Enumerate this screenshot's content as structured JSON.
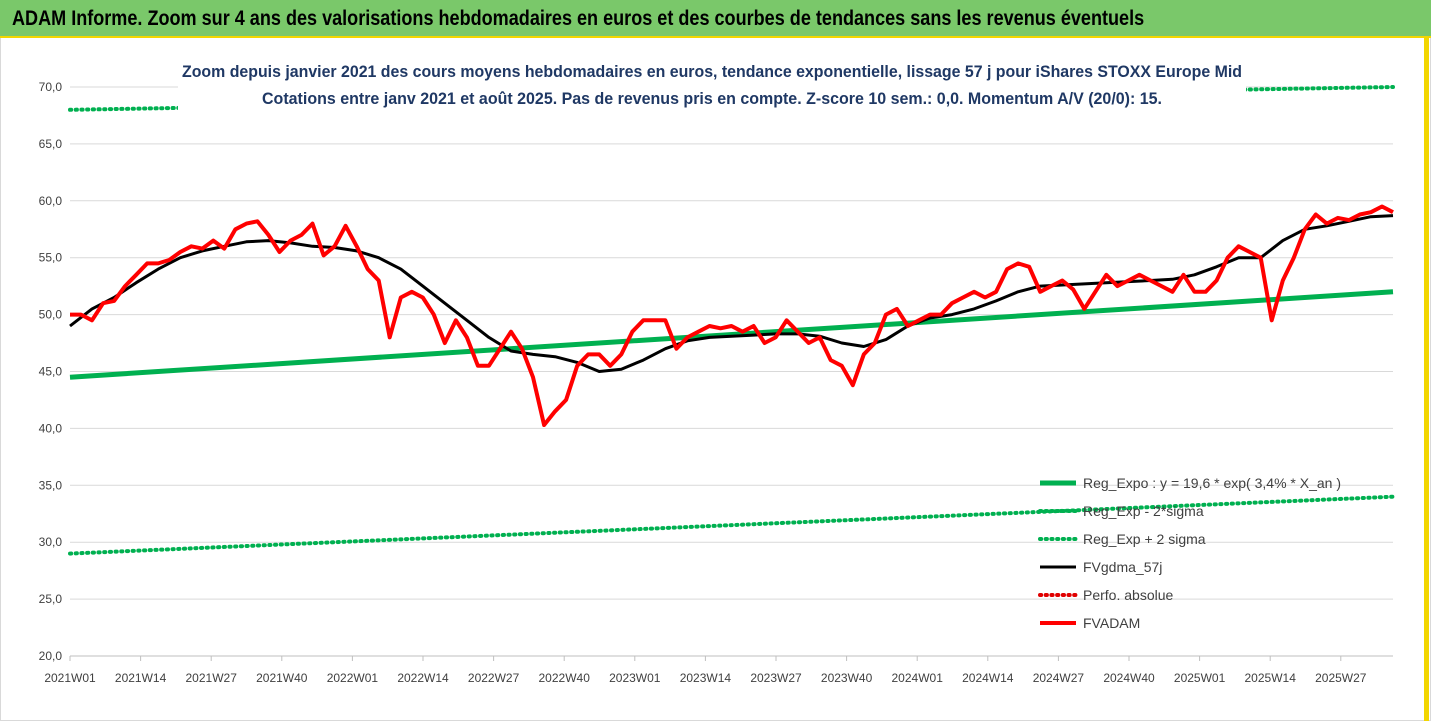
{
  "banner": {
    "title": "ADAM Informe. Zoom sur 4 ans des valorisations hebdomadaires en euros et des courbes de tendances sans les revenus éventuels"
  },
  "chart_data": {
    "type": "line",
    "title_line1": "Zoom depuis janvier 2021 des cours moyens hebdomadaires en euros, tendance exponentielle, lissage 57 j pour iShares STOXX Europe Mid",
    "title_line2": "Cotations entre janv 2021 et août 2025. Pas de revenus pris en compte. Z-score 10 sem.: 0,0. Momentum A/V (20/0): 15.",
    "ylim": [
      20,
      70
    ],
    "y_ticks": [
      "20,0",
      "25,0",
      "30,0",
      "35,0",
      "40,0",
      "45,0",
      "50,0",
      "55,0",
      "60,0",
      "65,0",
      "70,0"
    ],
    "x_ticks": [
      "2021W01",
      "2021W14",
      "2021W27",
      "2021W40",
      "2022W01",
      "2022W14",
      "2022W27",
      "2022W40",
      "2023W01",
      "2023W14",
      "2023W27",
      "2023W40",
      "2024W01",
      "2024W14",
      "2024W27",
      "2024W40",
      "2025W01",
      "2025W14",
      "2025W27"
    ],
    "x_range_weeks": [
      0,
      240
    ],
    "legend_position": "bottom-right",
    "series": [
      {
        "name": "Reg_Expo : y = 19,6 * exp( 3,4% *  X_an )",
        "color": "#00b050",
        "style": "solid",
        "x": [
          0,
          240
        ],
        "values": [
          44.5,
          52.0
        ]
      },
      {
        "name": "Reg_Exp - 2*sigma",
        "color": "#00b050",
        "style": "dotted",
        "x": [
          0,
          240
        ],
        "values": [
          29.0,
          34.0
        ]
      },
      {
        "name": "Reg_Exp + 2 sigma",
        "color": "#00b050",
        "style": "dotted",
        "x": [
          0,
          240
        ],
        "values": [
          68.0,
          70.0
        ]
      },
      {
        "name": "FVgdma_57j",
        "color": "#000000",
        "style": "solid",
        "x": [
          0,
          4,
          8,
          12,
          16,
          20,
          24,
          28,
          32,
          36,
          40,
          44,
          48,
          52,
          56,
          60,
          64,
          68,
          72,
          76,
          80,
          84,
          88,
          92,
          96,
          100,
          104,
          108,
          112,
          116,
          120,
          124,
          128,
          132,
          136,
          140,
          144,
          148,
          152,
          156,
          160,
          164,
          168,
          172,
          176,
          180,
          184,
          188,
          192,
          196,
          200,
          204,
          208,
          212,
          216,
          220,
          224,
          228,
          232,
          236,
          240
        ],
        "values": [
          49.0,
          50.5,
          51.5,
          52.8,
          54.0,
          55.0,
          55.6,
          56.0,
          56.4,
          56.5,
          56.3,
          56.0,
          55.9,
          55.6,
          55.0,
          54.0,
          52.5,
          51.0,
          49.5,
          48.0,
          46.8,
          46.5,
          46.3,
          45.8,
          45.0,
          45.2,
          46.0,
          47.0,
          47.7,
          48.0,
          48.1,
          48.2,
          48.3,
          48.3,
          48.1,
          47.5,
          47.2,
          47.8,
          49.0,
          49.7,
          50.0,
          50.5,
          51.2,
          52.0,
          52.5,
          52.6,
          52.7,
          52.8,
          52.9,
          53.0,
          53.1,
          53.5,
          54.2,
          55.0,
          55.0,
          56.5,
          57.5,
          57.8,
          58.2,
          58.6,
          58.7
        ]
      },
      {
        "name": "Perfo. absolue",
        "color": "#e00000",
        "style": "dotted",
        "x": [],
        "values": []
      },
      {
        "name": "FVADAM",
        "color": "#ff0000",
        "style": "solid",
        "x": [
          0,
          2,
          4,
          6,
          8,
          10,
          12,
          14,
          16,
          18,
          20,
          22,
          24,
          26,
          28,
          30,
          32,
          34,
          36,
          38,
          40,
          42,
          44,
          46,
          48,
          50,
          52,
          54,
          56,
          58,
          60,
          62,
          64,
          66,
          68,
          70,
          72,
          74,
          76,
          78,
          80,
          82,
          84,
          86,
          88,
          90,
          92,
          94,
          96,
          98,
          100,
          102,
          104,
          106,
          108,
          110,
          112,
          114,
          116,
          118,
          120,
          122,
          124,
          126,
          128,
          130,
          132,
          134,
          136,
          138,
          140,
          142,
          144,
          146,
          148,
          150,
          152,
          154,
          156,
          158,
          160,
          162,
          164,
          166,
          168,
          170,
          172,
          174,
          176,
          178,
          180,
          182,
          184,
          186,
          188,
          190,
          192,
          194,
          196,
          198,
          200,
          202,
          204,
          206,
          208,
          210,
          212,
          214,
          216,
          218,
          220,
          222,
          224,
          226,
          228,
          230,
          232,
          234,
          236,
          238,
          240
        ],
        "values": [
          50.0,
          50.0,
          49.5,
          51.0,
          51.2,
          52.5,
          53.5,
          54.5,
          54.5,
          54.8,
          55.5,
          56.0,
          55.8,
          56.5,
          55.8,
          57.5,
          58.0,
          58.2,
          57.0,
          55.5,
          56.5,
          57.0,
          58.0,
          55.2,
          56.0,
          57.8,
          56.0,
          54.0,
          53.0,
          48.0,
          51.5,
          52.0,
          51.5,
          50.0,
          47.5,
          49.5,
          48.0,
          45.5,
          45.5,
          47.0,
          48.5,
          47.0,
          44.5,
          40.3,
          41.5,
          42.5,
          45.5,
          46.5,
          46.5,
          45.5,
          46.5,
          48.5,
          49.5,
          49.5,
          49.5,
          47.0,
          48.0,
          48.5,
          49.0,
          48.8,
          49.0,
          48.5,
          49.0,
          47.5,
          48.0,
          49.5,
          48.5,
          47.5,
          48.0,
          46.0,
          45.5,
          43.8,
          46.5,
          47.5,
          50.0,
          50.5,
          49.0,
          49.5,
          50.0,
          50.0,
          51.0,
          51.5,
          52.0,
          51.5,
          52.0,
          54.0,
          54.5,
          54.2,
          52.0,
          52.5,
          53.0,
          52.2,
          50.5,
          52.0,
          53.5,
          52.5,
          53.0,
          53.5,
          53.0,
          52.5,
          52.0,
          53.5,
          52.0,
          52.0,
          53.0,
          55.0,
          56.0,
          55.5,
          55.0,
          49.5,
          53.0,
          55.0,
          57.5,
          58.8,
          58.0,
          58.5,
          58.3,
          58.8,
          59.0,
          59.5,
          59.0
        ]
      }
    ]
  }
}
